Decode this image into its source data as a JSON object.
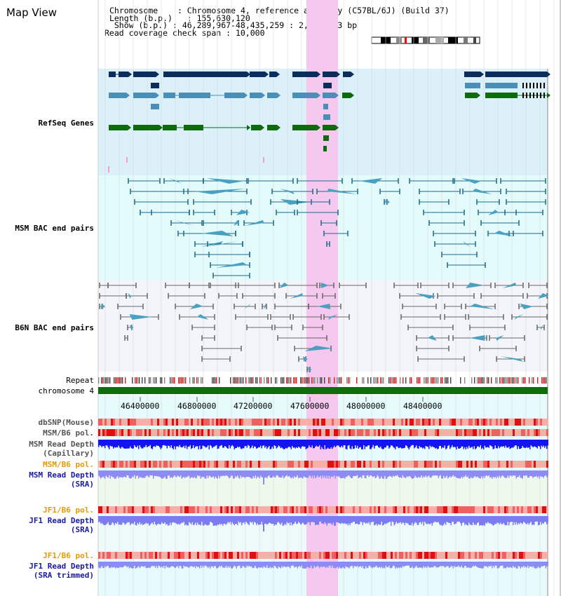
{
  "header": {
    "title": "Map View",
    "chromosome_label": "Chromosome",
    "chromosome_value": "Chromosome 4, reference assembly (C57BL/6J) (Build 37)",
    "length_label": "Length (b.p.)",
    "length_value": "155,630,120",
    "show_label": "Show (b.p.)",
    "show_value": "46,289,967-48,435,259 : 2,145,293 bp",
    "coverage_label": "Read coverage check span",
    "coverage_value": "10,000"
  },
  "tracks": {
    "refseq": {
      "label": "RefSeq Genes",
      "color": "#1a1aa6"
    },
    "msm_bac": {
      "label": "MSM BAC end pairs",
      "color": "#1a6a8a"
    },
    "b6n_bac": {
      "label": "B6N BAC end pairs",
      "color": "#555555"
    },
    "repeat": {
      "label": "Repeat"
    },
    "chromosome": {
      "label": "chromosome 4"
    },
    "dbsnp": {
      "label": "dbSNP(Mouse)"
    },
    "msm_b6_pol_1": {
      "label": "MSM/B6 pol."
    },
    "msm_read_depth_cap": {
      "label1": "MSM Read Depth",
      "label2": "(Capillary)"
    },
    "msm_b6_pol_2": {
      "label": "MSM/B6 pol.",
      "color": "#e89a00"
    },
    "msm_read_depth_sra": {
      "label1": "MSM Read Depth",
      "label2": "(SRA)",
      "color": "#1a1aa6"
    },
    "jf1_b6_pol_1": {
      "label": "JF1/B6 pol.",
      "color": "#e89a00"
    },
    "jf1_read_depth_sra": {
      "label1": "JF1 Read Depth",
      "label2": "(SRA)",
      "color": "#1a1aa6"
    },
    "jf1_b6_pol_2": {
      "label": "JF1/B6 pol.",
      "color": "#e89a00"
    },
    "jf1_read_depth_trim": {
      "label1": "JF1 Read Depth",
      "label2": "(SRA trimmed)",
      "color": "#1a1aa6"
    }
  },
  "axis": {
    "ticks": [
      "46400000",
      "46800000",
      "47200000",
      "47600000",
      "48000000",
      "48400000"
    ]
  },
  "colors": {
    "highlight": "#f6c8f0",
    "refseq_bg": "#dcf0fa",
    "msm_bg": "#e4fbfb",
    "b6n_bg": "#f3f5fa",
    "gene_dark": "#0b2d5c",
    "gene_mid": "#4a8fb8",
    "gene_green": "#0d6b0d",
    "chrom_green": "#0b6e0b"
  }
}
